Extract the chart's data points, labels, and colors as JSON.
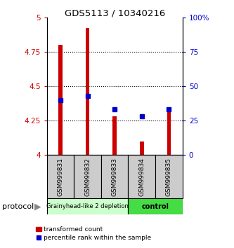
{
  "title": "GDS5113 / 10340216",
  "samples": [
    "GSM999831",
    "GSM999832",
    "GSM999833",
    "GSM999834",
    "GSM999835"
  ],
  "red_values": [
    4.8,
    4.92,
    4.28,
    4.1,
    4.33
  ],
  "blue_values_pct": [
    40,
    43,
    33,
    28,
    33
  ],
  "ylim_left": [
    4.0,
    5.0
  ],
  "ylim_right": [
    0,
    100
  ],
  "y_ticks_left": [
    4.0,
    4.25,
    4.5,
    4.75,
    5.0
  ],
  "y_ticks_right": [
    0,
    25,
    50,
    75,
    100
  ],
  "y_tick_labels_left": [
    "4",
    "4.25",
    "4.5",
    "4.75",
    "5"
  ],
  "y_tick_labels_right": [
    "0",
    "25",
    "50",
    "75",
    "100%"
  ],
  "dotted_lines": [
    4.25,
    4.5,
    4.75
  ],
  "bar_bottom": 4.0,
  "bar_color": "#cc0000",
  "dot_color": "#0000cc",
  "group1": [
    0,
    1,
    2
  ],
  "group2": [
    3,
    4
  ],
  "group1_label": "Grainyhead-like 2 depletion",
  "group2_label": "control",
  "group1_bg": "#ccffcc",
  "group2_bg": "#44dd44",
  "sample_bg": "#cccccc",
  "protocol_label": "protocol",
  "legend_red": "transformed count",
  "legend_blue": "percentile rank within the sample",
  "left_tick_color": "#cc0000",
  "right_tick_color": "#0000cc"
}
